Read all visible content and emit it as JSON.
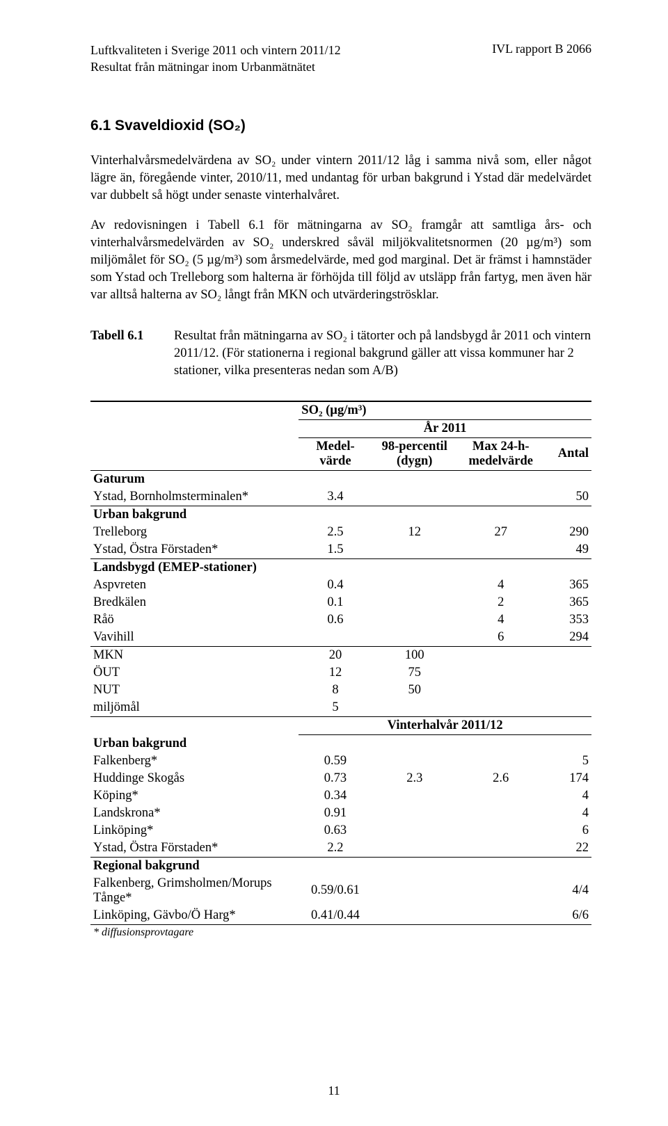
{
  "header": {
    "title_line1": "Luftkvaliteten i Sverige 2011 och vintern 2011/12",
    "title_line2": "Resultat från mätningar inom Urbanmätnätet",
    "report": "IVL rapport B 2066"
  },
  "section": {
    "title": "6.1 Svaveldioxid (SO₂)",
    "para1": "Vinterhalvårsmedelvärdena av SO₂ under vintern 2011/12 låg i samma nivå som, eller något lägre än, föregående vinter, 2010/11, med undantag för urban bakgrund i Ystad där medelvärdet var dubbelt så högt under senaste vinterhalvåret.",
    "para2": "Av redovisningen i Tabell 6.1 för mätningarna av SO₂ framgår att samtliga års- och vinterhalvårsmedelvärden av SO₂ underskred såväl miljökvalitetsnormen (20 µg/m³) som miljömålet för SO₂ (5 µg/m³) som årsmedelvärde, med god marginal. Det är främst i hamnstäder som Ystad och Trelleborg som halterna är förhöjda till följd av utsläpp från fartyg, men även här var alltså halterna av SO₂ långt från MKN och utvärderingströsklar."
  },
  "table_caption": {
    "label": "Tabell 6.1",
    "text": "Resultat från mätningarna av SO₂ i tätorter och på landsbygd år 2011 och vintern 2011/12. (För stationerna i regional bakgrund gäller att vissa kommuner har 2 stationer, vilka presenteras nedan som A/B)"
  },
  "table": {
    "unit_header": "SO₂ (µg/m³)",
    "period_header_1": "År 2011",
    "period_header_2": "Vinterhalvår 2011/12",
    "col_medel": "Medel-värde",
    "col_p98": "98-percentil (dygn)",
    "col_max": "Max 24-h-medelvärde",
    "col_antal": "Antal",
    "sec_gaturum": "Gaturum",
    "sec_urban": "Urban bakgrund",
    "sec_landsbygd": "Landsbygd (EMEP-stationer)",
    "sec_regional": "Regional bakgrund",
    "rows_year_gaturum": [
      {
        "name": "Ystad, Bornholmsterminalen*",
        "mv": "3.4",
        "p98": "",
        "max": "",
        "antal": "50"
      }
    ],
    "rows_year_urban": [
      {
        "name": "Trelleborg",
        "mv": "2.5",
        "p98": "12",
        "max": "27",
        "antal": "290"
      },
      {
        "name": "Ystad, Östra Förstaden*",
        "mv": "1.5",
        "p98": "",
        "max": "",
        "antal": "49"
      }
    ],
    "rows_year_landsbygd": [
      {
        "name": "Aspvreten",
        "mv": "0.4",
        "p98": "",
        "max": "4",
        "antal": "365"
      },
      {
        "name": "Bredkälen",
        "mv": "0.1",
        "p98": "",
        "max": "2",
        "antal": "365"
      },
      {
        "name": "Råö",
        "mv": "0.6",
        "p98": "",
        "max": "4",
        "antal": "353"
      },
      {
        "name": "Vavihill",
        "mv": "",
        "p98": "",
        "max": "6",
        "antal": "294"
      }
    ],
    "rows_limits": [
      {
        "name": "MKN",
        "mv": "20",
        "p98": "100",
        "max": "",
        "antal": ""
      },
      {
        "name": "ÖUT",
        "mv": "12",
        "p98": "75",
        "max": "",
        "antal": ""
      },
      {
        "name": "NUT",
        "mv": "8",
        "p98": "50",
        "max": "",
        "antal": ""
      },
      {
        "name": "miljömål",
        "mv": "5",
        "p98": "",
        "max": "",
        "antal": ""
      }
    ],
    "rows_winter_urban": [
      {
        "name": "Falkenberg*",
        "mv": "0.59",
        "p98": "",
        "max": "",
        "antal": "5"
      },
      {
        "name": "Huddinge Skogås",
        "mv": "0.73",
        "p98": "2.3",
        "max": "2.6",
        "antal": "174"
      },
      {
        "name": "Köping*",
        "mv": "0.34",
        "p98": "",
        "max": "",
        "antal": "4"
      },
      {
        "name": "Landskrona*",
        "mv": "0.91",
        "p98": "",
        "max": "",
        "antal": "4"
      },
      {
        "name": "Linköping*",
        "mv": "0.63",
        "p98": "",
        "max": "",
        "antal": "6"
      },
      {
        "name": "Ystad, Östra Förstaden*",
        "mv": "2.2",
        "p98": "",
        "max": "",
        "antal": "22"
      }
    ],
    "rows_winter_regional": [
      {
        "name": "Falkenberg, Grimsholmen/Morups Tånge*",
        "mv": "0.59/0.61",
        "p98": "",
        "max": "",
        "antal": "4/4"
      },
      {
        "name": "Linköping, Gävbo/Ö Harg*",
        "mv": "0.41/0.44",
        "p98": "",
        "max": "",
        "antal": "6/6"
      }
    ],
    "footnote": "* diffusionsprovtagare"
  },
  "page_number": "11"
}
